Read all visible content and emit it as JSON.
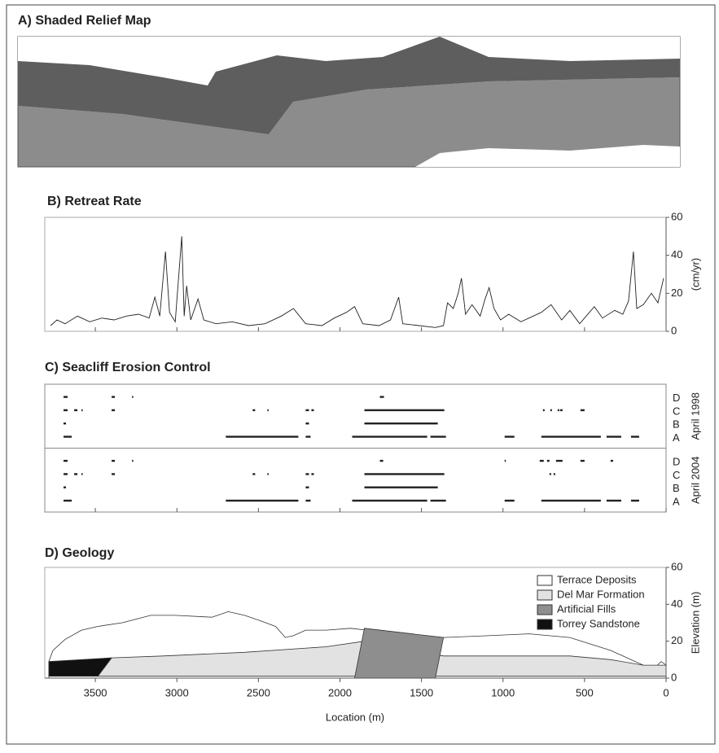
{
  "chart_data": [
    {
      "type": "image",
      "title": "A) Shaded Relief Map"
    },
    {
      "type": "line",
      "title": "B) Retreat Rate",
      "y_label": "(cm/yr)",
      "color": "#222",
      "xlim": [
        3810,
        0
      ],
      "ylim": [
        0,
        60
      ],
      "yticks": [
        0,
        20,
        40,
        60
      ],
      "x": [
        3775,
        3735,
        3685,
        3610,
        3535,
        3460,
        3385,
        3310,
        3235,
        3170,
        3135,
        3105,
        3070,
        3045,
        3010,
        2970,
        2955,
        2940,
        2915,
        2870,
        2835,
        2760,
        2660,
        2560,
        2460,
        2360,
        2285,
        2210,
        2110,
        2035,
        1960,
        1910,
        1860,
        1760,
        1690,
        1640,
        1615,
        1515,
        1415,
        1365,
        1340,
        1305,
        1275,
        1255,
        1230,
        1190,
        1140,
        1110,
        1085,
        1055,
        1015,
        965,
        890,
        815,
        765,
        705,
        640,
        590,
        530,
        490,
        440,
        390,
        315,
        265,
        230,
        200,
        180,
        140,
        90,
        50,
        15
      ],
      "values": [
        3,
        6,
        4,
        8,
        5,
        7,
        6,
        8,
        9,
        7,
        18,
        8,
        42,
        10,
        5,
        50,
        8,
        24,
        6,
        17,
        6,
        4,
        5,
        3,
        4,
        8,
        12,
        4,
        3,
        7,
        10,
        13,
        4,
        3,
        6,
        18,
        4,
        3,
        2,
        3,
        15,
        12,
        20,
        28,
        9,
        14,
        8,
        17,
        23,
        12,
        6,
        9,
        5,
        8,
        10,
        14,
        6,
        11,
        4,
        8,
        13,
        7,
        11,
        9,
        16,
        42,
        12,
        14,
        20,
        15,
        28
      ]
    },
    {
      "type": "range",
      "title": "C) Seacliff Erosion Control",
      "color": "#222",
      "xlim": [
        3810,
        0
      ],
      "categories": [
        "A",
        "B",
        "C",
        "D"
      ],
      "series": [
        {
          "name": "April 1998",
          "segments": [
            [
              [
                3695,
                3645
              ],
              [
                2700,
                2255
              ],
              [
                2210,
                2180
              ],
              [
                1925,
                1465
              ],
              [
                1445,
                1350
              ],
              [
                990,
                930
              ],
              [
                765,
                400
              ],
              [
                365,
                275
              ],
              [
                215,
                165
              ]
            ],
            [
              [
                3695,
                3680
              ],
              [
                2210,
                2190
              ],
              [
                1850,
                1400
              ]
            ],
            [
              [
                3695,
                3670
              ],
              [
                3630,
                3610
              ],
              [
                3585,
                3580
              ],
              [
                3400,
                3380
              ],
              [
                2535,
                2520
              ],
              [
                2445,
                2440
              ],
              [
                2210,
                2190
              ],
              [
                2175,
                2160
              ],
              [
                1850,
                1360
              ],
              [
                755,
                745
              ],
              [
                710,
                700
              ],
              [
                665,
                655
              ],
              [
                650,
                635
              ],
              [
                525,
                500
              ]
            ],
            [
              [
                3695,
                3670
              ],
              [
                3400,
                3380
              ],
              [
                3275,
                3270
              ],
              [
                1755,
                1730
              ]
            ]
          ]
        },
        {
          "name": "April 2004",
          "segments": [
            [
              [
                3695,
                3645
              ],
              [
                2700,
                2255
              ],
              [
                2210,
                2180
              ],
              [
                1925,
                1465
              ],
              [
                1445,
                1350
              ],
              [
                990,
                930
              ],
              [
                765,
                400
              ],
              [
                365,
                275
              ],
              [
                215,
                165
              ]
            ],
            [
              [
                3695,
                3680
              ],
              [
                2210,
                2190
              ],
              [
                1850,
                1400
              ]
            ],
            [
              [
                3695,
                3670
              ],
              [
                3630,
                3610
              ],
              [
                3585,
                3580
              ],
              [
                3400,
                3380
              ],
              [
                2535,
                2520
              ],
              [
                2445,
                2440
              ],
              [
                2210,
                2190
              ],
              [
                2175,
                2160
              ],
              [
                1850,
                1360
              ],
              [
                715,
                705
              ],
              [
                690,
                680
              ]
            ],
            [
              [
                3695,
                3670
              ],
              [
                3400,
                3380
              ],
              [
                3275,
                3270
              ],
              [
                1755,
                1735
              ],
              [
                990,
                985
              ],
              [
                775,
                750
              ],
              [
                730,
                715
              ],
              [
                675,
                635
              ],
              [
                525,
                500
              ],
              [
                340,
                325
              ]
            ]
          ]
        }
      ]
    },
    {
      "type": "polygon",
      "title": "D) Geology",
      "x_label": "Location (m)",
      "y_label": "Elevation (m)",
      "xlim": [
        3810,
        0
      ],
      "ylim": [
        0,
        60
      ],
      "xticks": [
        3500,
        3000,
        2500,
        2000,
        1500,
        1000,
        500,
        0
      ],
      "yticks": [
        0,
        20,
        40,
        60
      ],
      "series": [
        {
          "name": "Terrace Deposits",
          "color": "#ffffff",
          "x": [
            3785,
            3760,
            3685,
            3585,
            3485,
            3335,
            3160,
            3010,
            2785,
            2685,
            2585,
            2485,
            2395,
            2335,
            2285,
            2210,
            2085,
            1935,
            1835,
            1590,
            1365,
            1090,
            840,
            590,
            340,
            140,
            65,
            30,
            0,
            0,
            3785
          ],
          "values": [
            9,
            15,
            21,
            26,
            28,
            30,
            34,
            34,
            33,
            36,
            34,
            31,
            28,
            22,
            23,
            26,
            26,
            27,
            26,
            24,
            22,
            23,
            24,
            22,
            15,
            7,
            6,
            9,
            7,
            0,
            0
          ]
        },
        {
          "name": "Del Mar Formation",
          "color": "#e2e2e2",
          "x": [
            3485,
            3400,
            3085,
            2585,
            2085,
            1850,
            1365,
            1090,
            590,
            340,
            140,
            0,
            0
          ],
          "values": [
            1,
            11,
            12,
            14,
            17,
            20,
            12,
            12,
            12,
            10,
            7,
            7,
            1
          ]
        },
        {
          "name": "Artificial Fills",
          "color": "#8e8e8e",
          "x": [
            1850,
            1365,
            1415,
            1910
          ],
          "values": [
            27,
            22,
            0,
            0
          ]
        },
        {
          "name": "Torrey Sandstone",
          "color": "#111111",
          "x": [
            3785,
            3400,
            3485,
            3785
          ],
          "values": [
            9,
            11,
            1,
            1
          ]
        }
      ]
    }
  ]
}
